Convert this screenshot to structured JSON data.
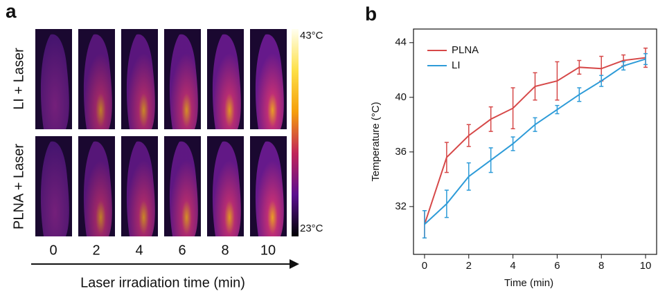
{
  "panel_a": {
    "label": "a",
    "rows": [
      "LI + Laser",
      "PLNA + Laser"
    ],
    "times": [
      0,
      2,
      4,
      6,
      8,
      10
    ],
    "colorbar_max": "43°C",
    "colorbar_min": "23°C",
    "x_label": "Laser irradiation time (min)"
  },
  "chart_data": {
    "type": "line",
    "panel_label": "b",
    "x_label": "Time (min)",
    "y_label": "Temperature (°C)",
    "x": [
      0,
      1,
      2,
      3,
      4,
      5,
      6,
      7,
      8,
      9,
      10
    ],
    "series": [
      {
        "name": "PLNA",
        "color": "#d64848",
        "values": [
          30.7,
          35.6,
          37.2,
          38.4,
          39.2,
          40.8,
          41.2,
          42.2,
          42.1,
          42.7,
          42.9
        ],
        "errors": [
          1.0,
          1.1,
          0.8,
          0.9,
          1.5,
          1.0,
          1.4,
          0.5,
          0.9,
          0.4,
          0.7
        ]
      },
      {
        "name": "LI",
        "color": "#2d9bd8",
        "values": [
          30.7,
          32.2,
          34.2,
          35.4,
          36.6,
          38.0,
          39.1,
          40.2,
          41.2,
          42.3,
          42.8
        ],
        "errors": [
          1.0,
          1.0,
          1.0,
          0.9,
          0.5,
          0.5,
          0.3,
          0.5,
          0.4,
          0.3,
          0.4
        ]
      }
    ],
    "xlim": [
      -0.5,
      10.5
    ],
    "ylim": [
      28.5,
      45
    ],
    "xticks": [
      0,
      2,
      4,
      6,
      8,
      10
    ],
    "yticks": [
      32,
      36,
      40,
      44
    ],
    "legend": "top-left"
  }
}
